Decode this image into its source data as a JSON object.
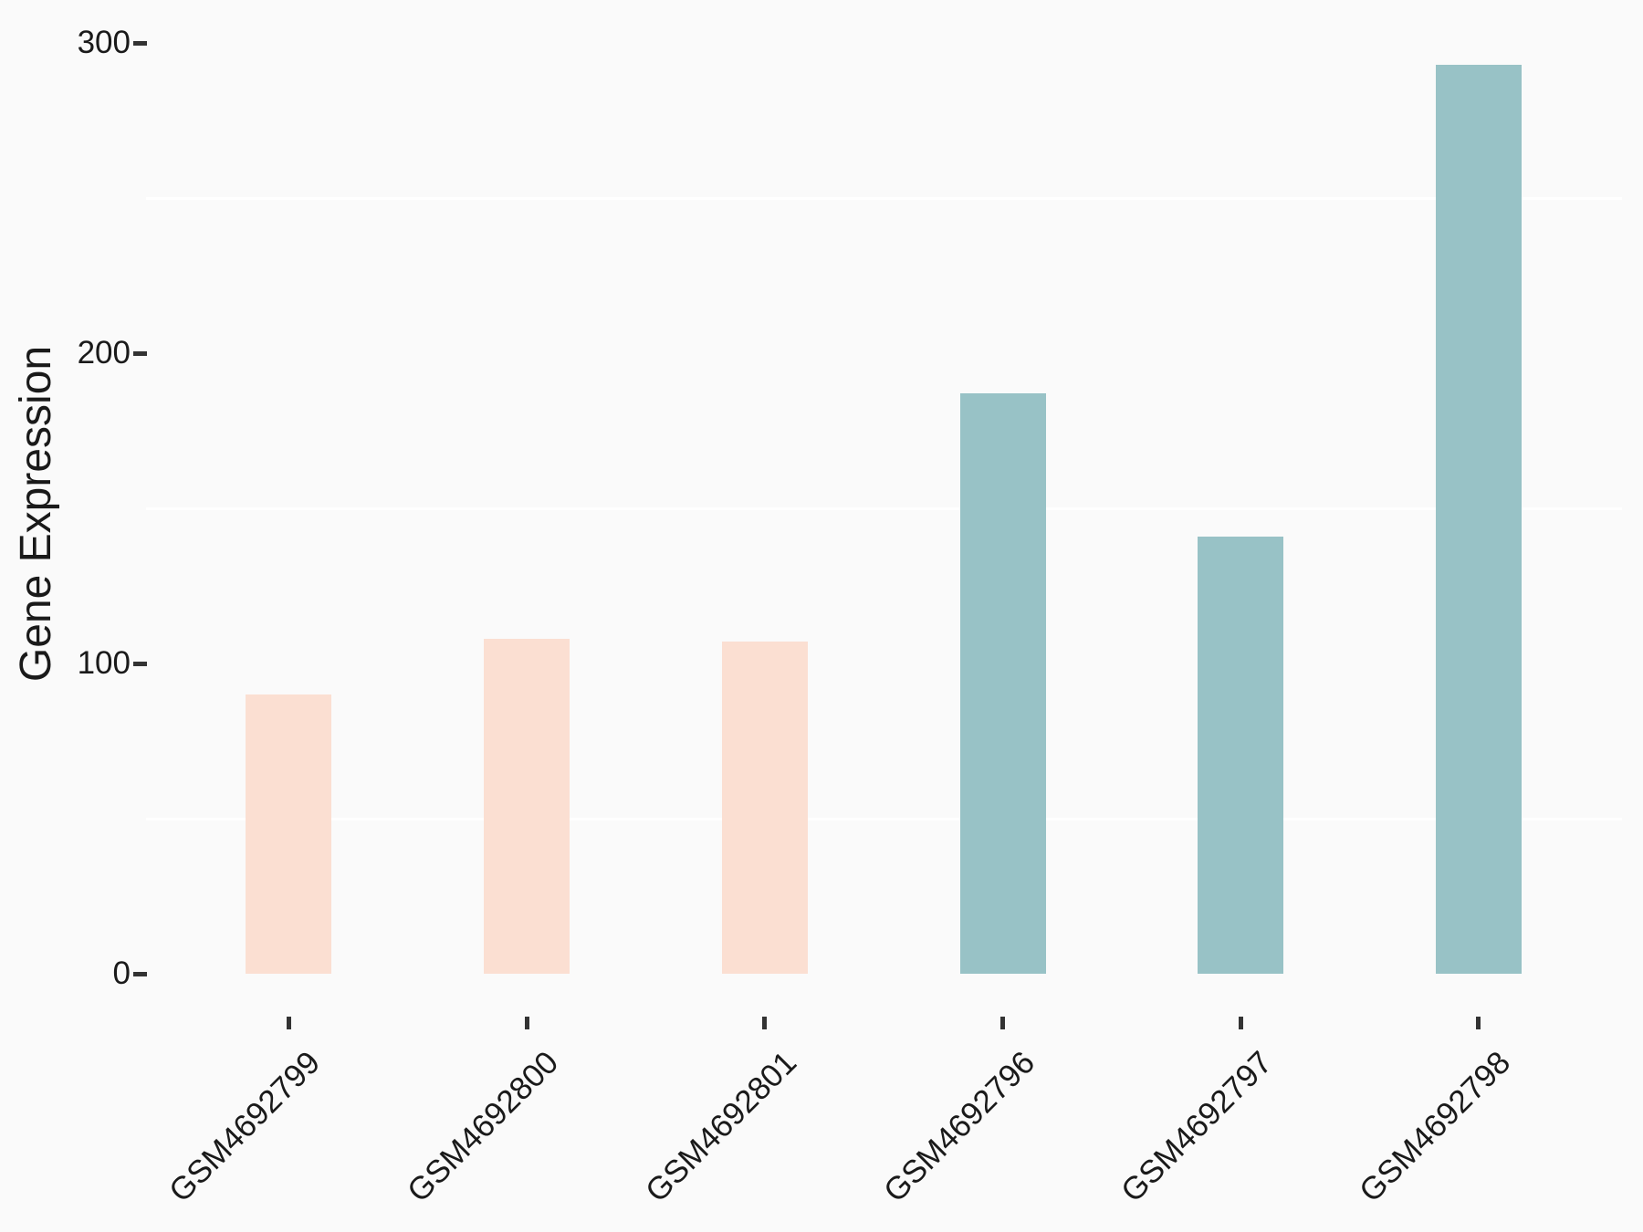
{
  "chart_data": {
    "type": "bar",
    "title": "",
    "xlabel": "",
    "ylabel": "Gene Expression",
    "categories": [
      "GSM4692799",
      "GSM4692800",
      "GSM4692801",
      "GSM4692796",
      "GSM4692797",
      "GSM4692798"
    ],
    "values": [
      90,
      108,
      107,
      187,
      141,
      293
    ],
    "bar_colors": [
      "#fbdfd2",
      "#fbdfd2",
      "#fbdfd2",
      "#98c2c6",
      "#98c2c6",
      "#98c2c6"
    ],
    "ylim": [
      0,
      307
    ],
    "yticks": [
      0,
      100,
      200,
      300
    ],
    "ytick_labels": [
      "0",
      "100",
      "200",
      "300"
    ],
    "minor_gridlines": [
      50,
      150,
      250
    ],
    "grid": "horizontal minor gridlines only, white",
    "legend": "none",
    "x_label_angle_deg": 45,
    "colors": {
      "background": "#fafafa",
      "gridline": "#ffffff",
      "text": "#1a1a1a",
      "tick_mark": "#333333"
    }
  }
}
